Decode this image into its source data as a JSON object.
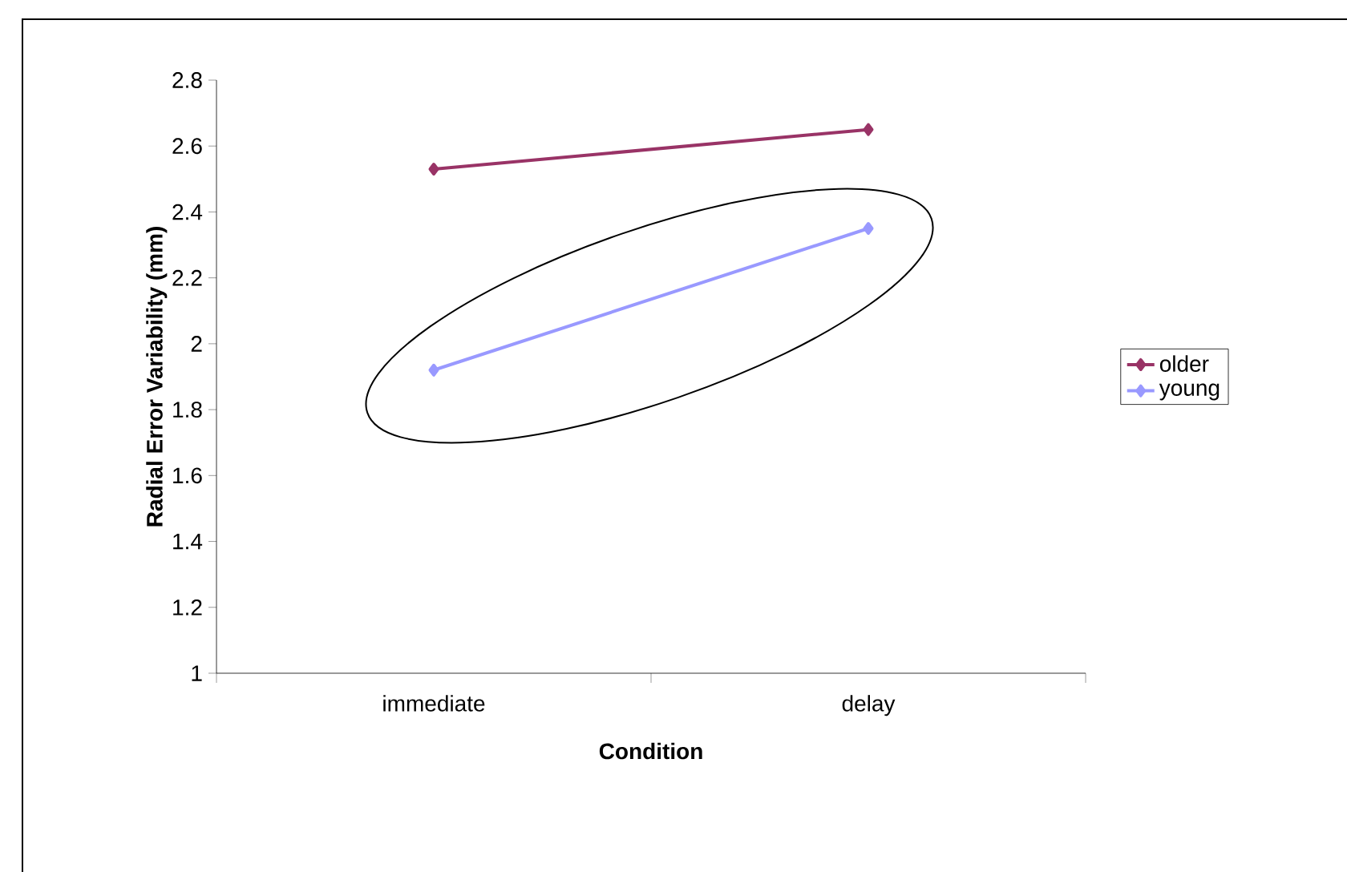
{
  "chart_data": {
    "type": "line",
    "xlabel": "Condition",
    "ylabel": "Radial Error Variability (mm)",
    "categories": [
      "immediate",
      "delay"
    ],
    "series": [
      {
        "name": "older",
        "color": "#993366",
        "values": [
          2.53,
          2.65
        ]
      },
      {
        "name": "young",
        "color": "#9999ff",
        "values": [
          1.92,
          2.35
        ]
      }
    ],
    "ylim": [
      1,
      2.8
    ],
    "yticks": [
      1,
      1.2,
      1.4,
      1.6,
      1.8,
      2,
      2.2,
      2.4,
      2.6,
      2.8
    ],
    "marker": "diamond",
    "legend": "right"
  }
}
